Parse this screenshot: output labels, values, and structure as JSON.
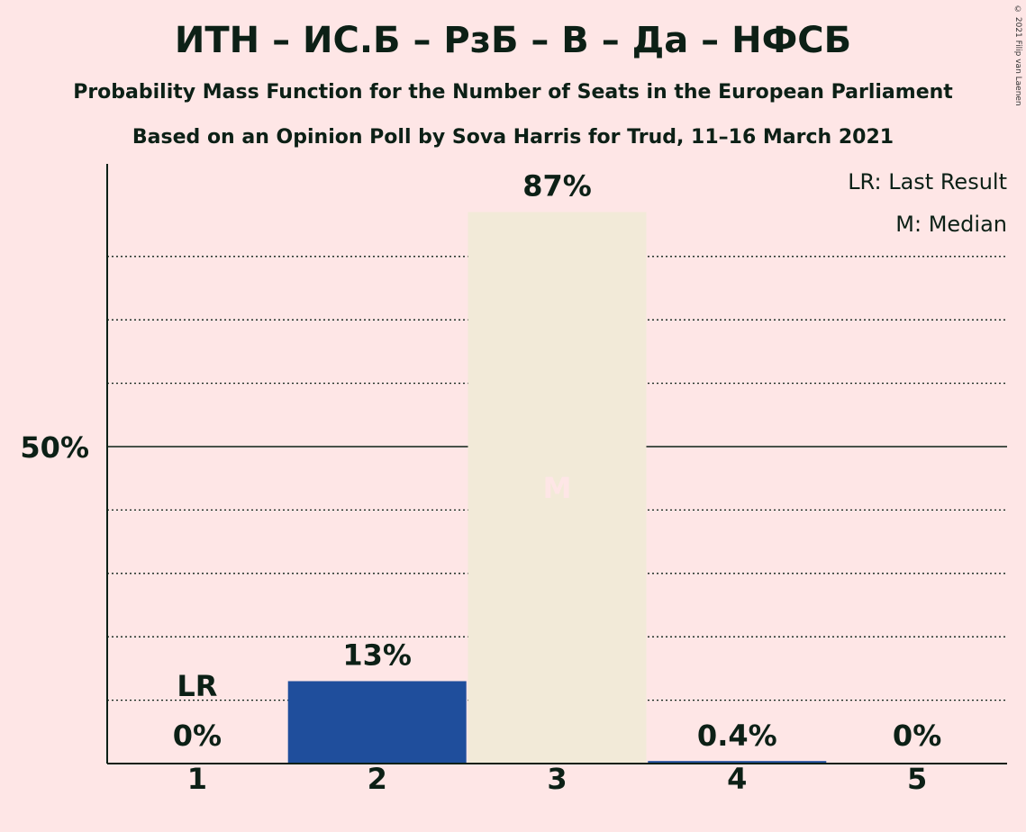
{
  "header": {
    "title": "ИТН – ИС.Б – РзБ – В – Да – НФСБ",
    "subtitle1": "Probability Mass Function for the Number of Seats in the European Parliament",
    "subtitle2": "Based on an Opinion Poll by Sova Harris for Trud, 11–16 March 2021",
    "copyright": "© 2021 Filip van Laenen"
  },
  "legend": {
    "position": "top-right",
    "last_result": "LR: Last Result",
    "median": "M: Median"
  },
  "chart_data": {
    "type": "bar",
    "categories": [
      "1",
      "2",
      "3",
      "4",
      "5"
    ],
    "values": [
      0,
      13,
      87,
      0.4,
      0
    ],
    "value_labels": [
      "0%",
      "13%",
      "87%",
      "0.4%",
      "0%"
    ],
    "bar_colors": [
      "#1f4e9c",
      "#1f4e9c",
      "#f2ead8",
      "#1f4e9c",
      "#1f4e9c"
    ],
    "ylim": [
      0,
      95
    ],
    "yticks": [
      {
        "value": 50,
        "label": "50%"
      }
    ],
    "minor_gridlines": [
      10,
      20,
      30,
      40,
      60,
      70,
      80
    ],
    "last_result_index": 0,
    "last_result_label": "LR",
    "median_index": 2,
    "median_label": "M",
    "grid": true
  }
}
